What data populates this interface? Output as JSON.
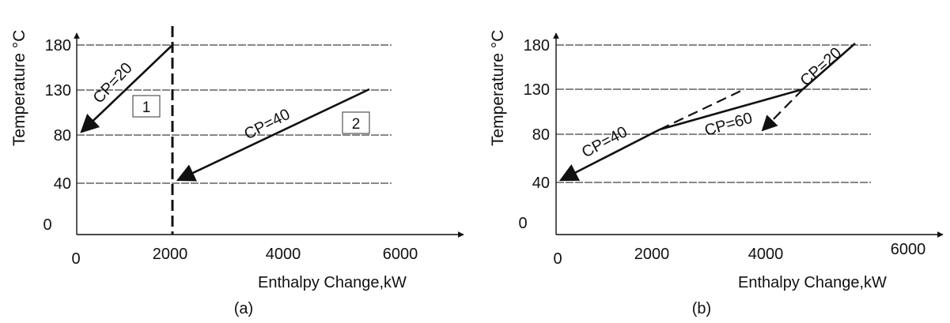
{
  "chart_data": [
    {
      "type": "line",
      "caption": "(a)",
      "xlabel": "Enthalpy Change,kW",
      "ylabel": "Temperature °C",
      "xticks": [
        "0",
        "2000",
        "4000",
        "6000"
      ],
      "yticks": [
        "0",
        "40",
        "80",
        "130",
        "180"
      ],
      "xlim": [
        0,
        6000
      ],
      "temperature_levels": [
        40,
        80,
        130,
        180
      ],
      "vertical_divider_x": 2050,
      "series": [
        {
          "label": "CP=20",
          "box_label": "1",
          "x": [
            2050,
            0
          ],
          "y": [
            180,
            80
          ]
        },
        {
          "label": "CP=40",
          "box_label": "2",
          "x": [
            5400,
            2050
          ],
          "y": [
            130,
            40
          ]
        }
      ]
    },
    {
      "type": "line",
      "caption": "(b)",
      "xlabel": "Enthalpy Change,kW",
      "ylabel": "Temperature °C",
      "xticks": [
        "0",
        "2000",
        "4000",
        "6000"
      ],
      "yticks": [
        "0",
        "40",
        "80",
        "130",
        "180"
      ],
      "xlim": [
        0,
        6000
      ],
      "temperature_levels": [
        40,
        80,
        130,
        180
      ],
      "composite_curve": {
        "x": [
          0,
          2050,
          4350,
          5050
        ],
        "y": [
          40,
          80,
          130,
          180
        ]
      },
      "segment_labels": [
        "CP=40",
        "CP=60",
        "CP=20"
      ],
      "dashed_extensions": [
        {
          "x": [
            2050,
            3400
          ],
          "y": [
            80,
            130
          ]
        },
        {
          "x": [
            4350,
            3700
          ],
          "y": [
            130,
            80
          ]
        }
      ]
    }
  ]
}
